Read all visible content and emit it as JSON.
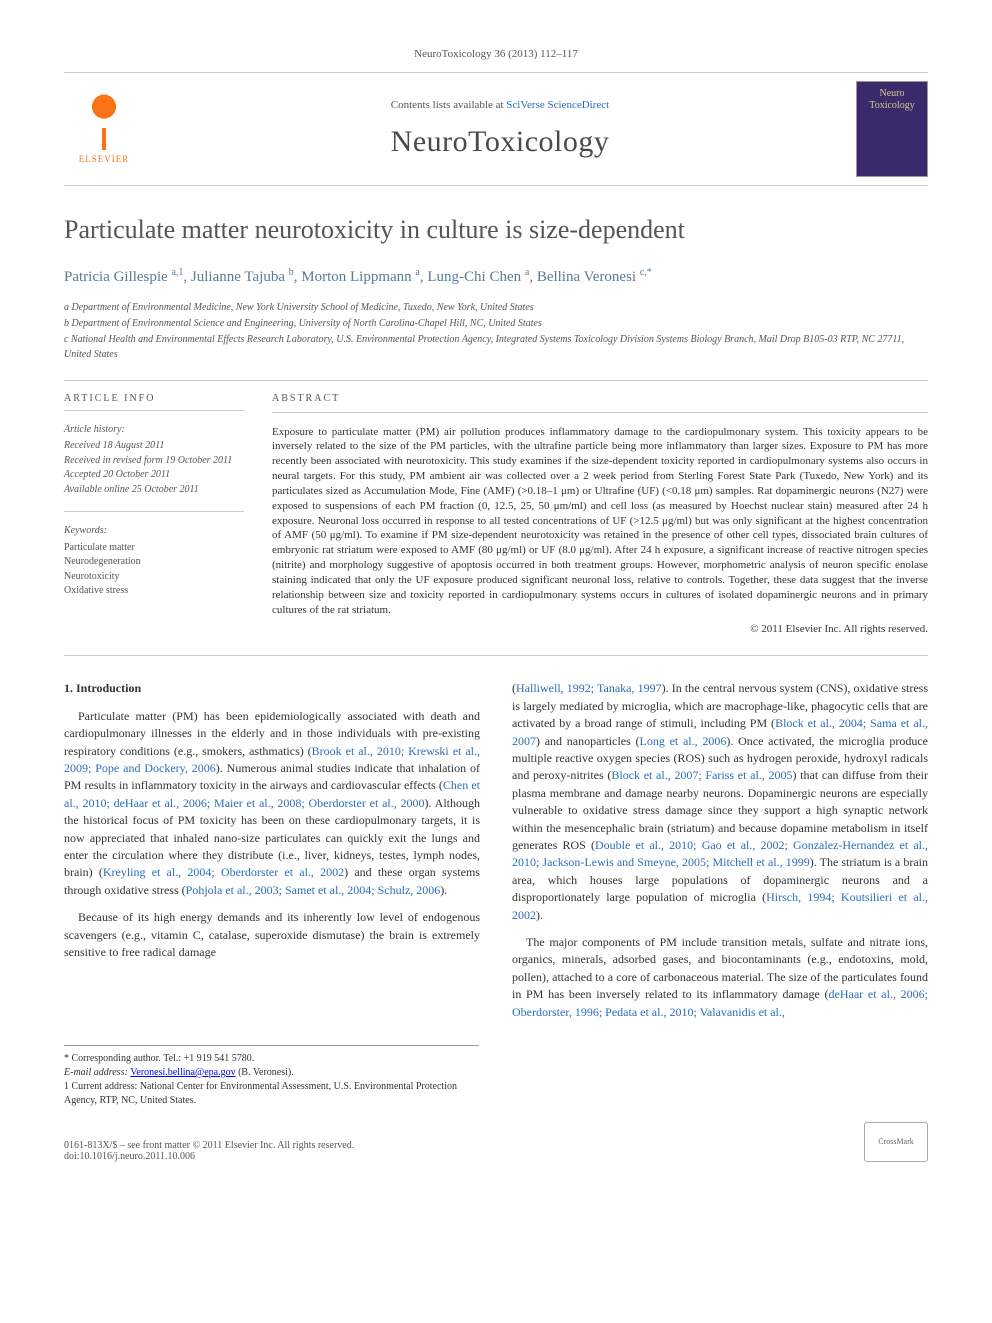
{
  "journal_ref": "NeuroToxicology 36 (2013) 112–117",
  "masthead": {
    "contents_prefix": "Contents lists available at ",
    "contents_link": "SciVerse ScienceDirect",
    "journal_name": "NeuroToxicology",
    "cover_line1": "Neuro",
    "cover_line2": "Toxicology",
    "elsevier": "ELSEVIER"
  },
  "title": "Particulate matter neurotoxicity in culture is size-dependent",
  "authors_html": "Patricia Gillespie <sup>a,1</sup>, Julianne Tajuba <sup>b</sup>, Morton Lippmann <sup>a</sup>, Lung-Chi Chen <sup>a</sup>, Bellina Veronesi <sup>c,*</sup>",
  "affiliations": {
    "a": "a Department of Environmental Medicine, New York University School of Medicine, Tuxedo, New York, United States",
    "b": "b Department of Environmental Science and Engineering, University of North Carolina-Chapel Hill, NC, United States",
    "c": "c National Health and Environmental Effects Research Laboratory, U.S. Environmental Protection Agency, Integrated Systems Toxicology Division Systems Biology Branch, Mail Drop B105-03 RTP, NC 27711, United States"
  },
  "info": {
    "heading": "ARTICLE INFO",
    "history_head": "Article history:",
    "received": "Received 18 August 2011",
    "revised": "Received in revised form 19 October 2011",
    "accepted": "Accepted 20 October 2011",
    "online": "Available online 25 October 2011",
    "keywords_head": "Keywords:",
    "kw1": "Particulate matter",
    "kw2": "Neurodegeneration",
    "kw3": "Neurotoxicity",
    "kw4": "Oxidative stress"
  },
  "abstract": {
    "heading": "ABSTRACT",
    "text": "Exposure to particulate matter (PM) air pollution produces inflammatory damage to the cardiopulmonary system. This toxicity appears to be inversely related to the size of the PM particles, with the ultrafine particle being more inflammatory than larger sizes. Exposure to PM has more recently been associated with neurotoxicity. This study examines if the size-dependent toxicity reported in cardiopulmonary systems also occurs in neural targets. For this study, PM ambient air was collected over a 2 week period from Sterling Forest State Park (Tuxedo, New York) and its particulates sized as Accumulation Mode, Fine (AMF) (>0.18–1 μm) or Ultrafine (UF) (<0.18 μm) samples. Rat dopaminergic neurons (N27) were exposed to suspensions of each PM fraction (0, 12.5, 25, 50 μm/ml) and cell loss (as measured by Hoechst nuclear stain) measured after 24 h exposure. Neuronal loss occurred in response to all tested concentrations of UF (>12.5 μg/ml) but was only significant at the highest concentration of AMF (50 μg/ml). To examine if PM size-dependent neurotoxicity was retained in the presence of other cell types, dissociated brain cultures of embryonic rat striatum were exposed to AMF (80 μg/ml) or UF (8.0 μg/ml). After 24 h exposure, a significant increase of reactive nitrogen species (nitrite) and morphology suggestive of apoptosis occurred in both treatment groups. However, morphometric analysis of neuron specific enolase staining indicated that only the UF exposure produced significant neuronal loss, relative to controls. Together, these data suggest that the inverse relationship between size and toxicity reported in cardiopulmonary systems occurs in cultures of isolated dopaminergic neurons and in primary cultures of the rat striatum.",
    "copyright": "© 2011 Elsevier Inc. All rights reserved."
  },
  "body": {
    "section_heading": "1. Introduction",
    "p1_pre": "Particulate matter (PM) has been epidemiologically associated with death and cardiopulmonary illnesses in the elderly and in those individuals with pre-existing respiratory conditions (e.g., smokers, asthmatics) (",
    "p1_ref1": "Brook et al., 2010; Krewski et al., 2009; Pope and Dockery, 2006",
    "p1_mid1": "). Numerous animal studies indicate that inhalation of PM results in inflammatory toxicity in the airways and cardiovascular effects (",
    "p1_ref2": "Chen et al., 2010; deHaar et al., 2006; Maier et al., 2008; Oberdorster et al., 2000",
    "p1_mid2": "). Although the historical focus of PM toxicity has been on these cardiopulmonary targets, it is now appreciated that inhaled nano-size particulates can quickly exit the lungs and enter the circulation where they distribute (i.e., liver, kidneys, testes, lymph nodes, brain) (",
    "p1_ref3": "Kreyling et al., 2004; Oberdorster et al., 2002",
    "p1_mid3": ") and these organ systems through oxidative stress (",
    "p1_ref4": "Pohjola et al., 2003; Samet et al., 2004; Schulz, 2006",
    "p1_end": ").",
    "p2": "Because of its high energy demands and its inherently low level of endogenous scavengers (e.g., vitamin C, catalase, superoxide dismutase) the brain is extremely sensitive to free radical damage",
    "p3_pre": "(",
    "p3_ref1": "Halliwell, 1992; Tanaka, 1997",
    "p3_mid1": "). In the central nervous system (CNS), oxidative stress is largely mediated by microglia, which are macrophage-like, phagocytic cells that are activated by a broad range of stimuli, including PM (",
    "p3_ref2": "Block et al., 2004; Sama et al., 2007",
    "p3_mid2": ") and nanoparticles (",
    "p3_ref3": "Long et al., 2006",
    "p3_mid3": "). Once activated, the microglia produce multiple reactive oxygen species (ROS) such as hydrogen peroxide, hydroxyl radicals and peroxy-nitrites (",
    "p3_ref4": "Block et al., 2007; Fariss et al., 2005",
    "p3_mid4": ") that can diffuse from their plasma membrane and damage nearby neurons. Dopaminergic neurons are especially vulnerable to oxidative stress damage since they support a high synaptic network within the mesencephalic brain (striatum) and because dopamine metabolism in itself generates ROS (",
    "p3_ref5": "Double et al., 2010; Gao et al., 2002; Gonzalez-Hernandez et al., 2010; Jackson-Lewis and Smeyne, 2005; Mitchell et al., 1999",
    "p3_mid5": "). The striatum is a brain area, which houses large populations of dopaminergic neurons and a disproportionately large population of microglia (",
    "p3_ref6": "Hirsch, 1994; Koutsilieri et al., 2002",
    "p3_end": ").",
    "p4_pre": "The major components of PM include transition metals, sulfate and nitrate ions, organics, minerals, adsorbed gases, and biocontaminants (e.g., endotoxins, mold, pollen), attached to a core of carbonaceous material. The size of the particulates found in PM has been inversely related to its inflammatory damage (",
    "p4_ref1": "deHaar et al., 2006; Oberdorster, 1996; Pedata et al., 2010; Valavanidis et al.,"
  },
  "footnotes": {
    "corr": "* Corresponding author. Tel.: +1 919 541 5780.",
    "email_label": "E-mail address: ",
    "email": "Veronesi.bellina@epa.gov",
    "email_suffix": " (B. Veronesi).",
    "note1": "1 Current address: National Center for Environmental Assessment, U.S. Environmental Protection Agency, RTP, NC, United States."
  },
  "footer": {
    "issn": "0161-813X/$ – see front matter © 2011 Elsevier Inc. All rights reserved.",
    "doi": "doi:10.1016/j.neuro.2011.10.006",
    "crossmark": "CrossMark"
  },
  "colors": {
    "link": "#2a6ebb",
    "author": "#5a7a9a",
    "text": "#333333",
    "muted": "#555555",
    "rule": "#cccccc",
    "elsevier": "#f97316",
    "cover_bg": "#3b2a6b",
    "cover_fg": "#d6c98b"
  },
  "typography": {
    "title_size_pt": 20,
    "journal_name_size_pt": 22,
    "body_size_pt": 9,
    "abstract_size_pt": 8.5,
    "affil_size_pt": 7.5
  }
}
